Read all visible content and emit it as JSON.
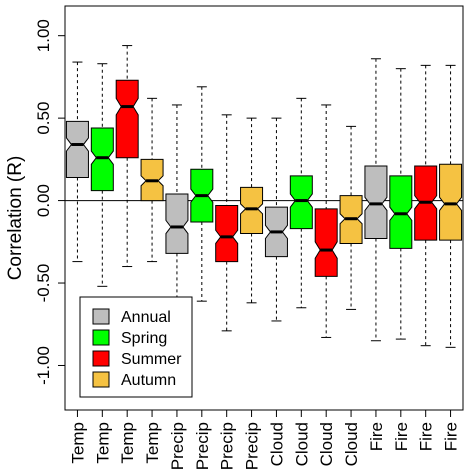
{
  "chart_data": {
    "type": "boxplot",
    "ylabel": "Correlation (R)",
    "ylim": [
      -1.27,
      1.18
    ],
    "yticks": [
      1.0,
      0.5,
      0.0,
      -0.5,
      -1.0
    ],
    "ytick_labels": [
      "1.00",
      "0.50",
      "0.00",
      "-0.50",
      "-1.00"
    ],
    "reference_line": 0.0,
    "legend_position": "bottom-left",
    "legend": [
      {
        "label": "Annual",
        "color": "#bebebe"
      },
      {
        "label": "Spring",
        "color": "#00ff00"
      },
      {
        "label": "Summer",
        "color": "#ff0000"
      },
      {
        "label": "Autumn",
        "color": "#f5c242"
      }
    ],
    "categories": [
      "Temp",
      "Temp",
      "Temp",
      "Temp",
      "Precip",
      "Precip",
      "Precip",
      "Precip",
      "Cloud",
      "Cloud",
      "Cloud",
      "Cloud",
      "Fire",
      "Fire",
      "Fire",
      "Fire"
    ],
    "boxes": [
      {
        "category": "Temp",
        "season": "Annual",
        "whisker_min": -0.37,
        "q1": 0.14,
        "median": 0.34,
        "q3": 0.48,
        "whisker_max": 0.84,
        "notch_low": 0.3,
        "notch_high": 0.38
      },
      {
        "category": "Temp",
        "season": "Spring",
        "whisker_min": -0.52,
        "q1": 0.06,
        "median": 0.26,
        "q3": 0.44,
        "whisker_max": 0.83,
        "notch_low": 0.22,
        "notch_high": 0.3
      },
      {
        "category": "Temp",
        "season": "Summer",
        "whisker_min": -0.4,
        "q1": 0.26,
        "median": 0.57,
        "q3": 0.73,
        "whisker_max": 0.94,
        "notch_low": 0.52,
        "notch_high": 0.62
      },
      {
        "category": "Temp",
        "season": "Autumn",
        "whisker_min": -0.37,
        "q1": 0.0,
        "median": 0.12,
        "q3": 0.25,
        "whisker_max": 0.62,
        "notch_low": 0.09,
        "notch_high": 0.15
      },
      {
        "category": "Precip",
        "season": "Annual",
        "whisker_min": -0.74,
        "q1": -0.32,
        "median": -0.16,
        "q3": 0.04,
        "whisker_max": 0.58,
        "notch_low": -0.2,
        "notch_high": -0.12
      },
      {
        "category": "Precip",
        "season": "Spring",
        "whisker_min": -0.61,
        "q1": -0.13,
        "median": 0.03,
        "q3": 0.19,
        "whisker_max": 0.69,
        "notch_low": -0.01,
        "notch_high": 0.07
      },
      {
        "category": "Precip",
        "season": "Summer",
        "whisker_min": -0.79,
        "q1": -0.37,
        "median": -0.22,
        "q3": -0.03,
        "whisker_max": 0.52,
        "notch_low": -0.26,
        "notch_high": -0.18
      },
      {
        "category": "Precip",
        "season": "Autumn",
        "whisker_min": -0.62,
        "q1": -0.2,
        "median": -0.05,
        "q3": 0.08,
        "whisker_max": 0.5,
        "notch_low": -0.08,
        "notch_high": -0.02
      },
      {
        "category": "Cloud",
        "season": "Annual",
        "whisker_min": -0.73,
        "q1": -0.34,
        "median": -0.19,
        "q3": -0.04,
        "whisker_max": 0.5,
        "notch_low": -0.23,
        "notch_high": -0.15
      },
      {
        "category": "Cloud",
        "season": "Spring",
        "whisker_min": -0.65,
        "q1": -0.17,
        "median": 0.0,
        "q3": 0.15,
        "whisker_max": 0.62,
        "notch_low": -0.04,
        "notch_high": 0.04
      },
      {
        "category": "Cloud",
        "season": "Summer",
        "whisker_min": -0.83,
        "q1": -0.46,
        "median": -0.3,
        "q3": -0.05,
        "whisker_max": 0.58,
        "notch_low": -0.35,
        "notch_high": -0.25
      },
      {
        "category": "Cloud",
        "season": "Autumn",
        "whisker_min": -0.66,
        "q1": -0.26,
        "median": -0.11,
        "q3": 0.03,
        "whisker_max": 0.45,
        "notch_low": -0.14,
        "notch_high": -0.08
      },
      {
        "category": "Fire",
        "season": "Annual",
        "whisker_min": -0.85,
        "q1": -0.23,
        "median": -0.02,
        "q3": 0.21,
        "whisker_max": 0.86,
        "notch_low": -0.06,
        "notch_high": 0.02
      },
      {
        "category": "Fire",
        "season": "Spring",
        "whisker_min": -0.84,
        "q1": -0.29,
        "median": -0.08,
        "q3": 0.15,
        "whisker_max": 0.8,
        "notch_low": -0.12,
        "notch_high": -0.04
      },
      {
        "category": "Fire",
        "season": "Summer",
        "whisker_min": -0.88,
        "q1": -0.24,
        "median": -0.01,
        "q3": 0.21,
        "whisker_max": 0.82,
        "notch_low": -0.05,
        "notch_high": 0.03
      },
      {
        "category": "Fire",
        "season": "Autumn",
        "whisker_min": -0.89,
        "q1": -0.24,
        "median": -0.02,
        "q3": 0.22,
        "whisker_max": 0.82,
        "notch_low": -0.06,
        "notch_high": 0.02
      }
    ]
  }
}
